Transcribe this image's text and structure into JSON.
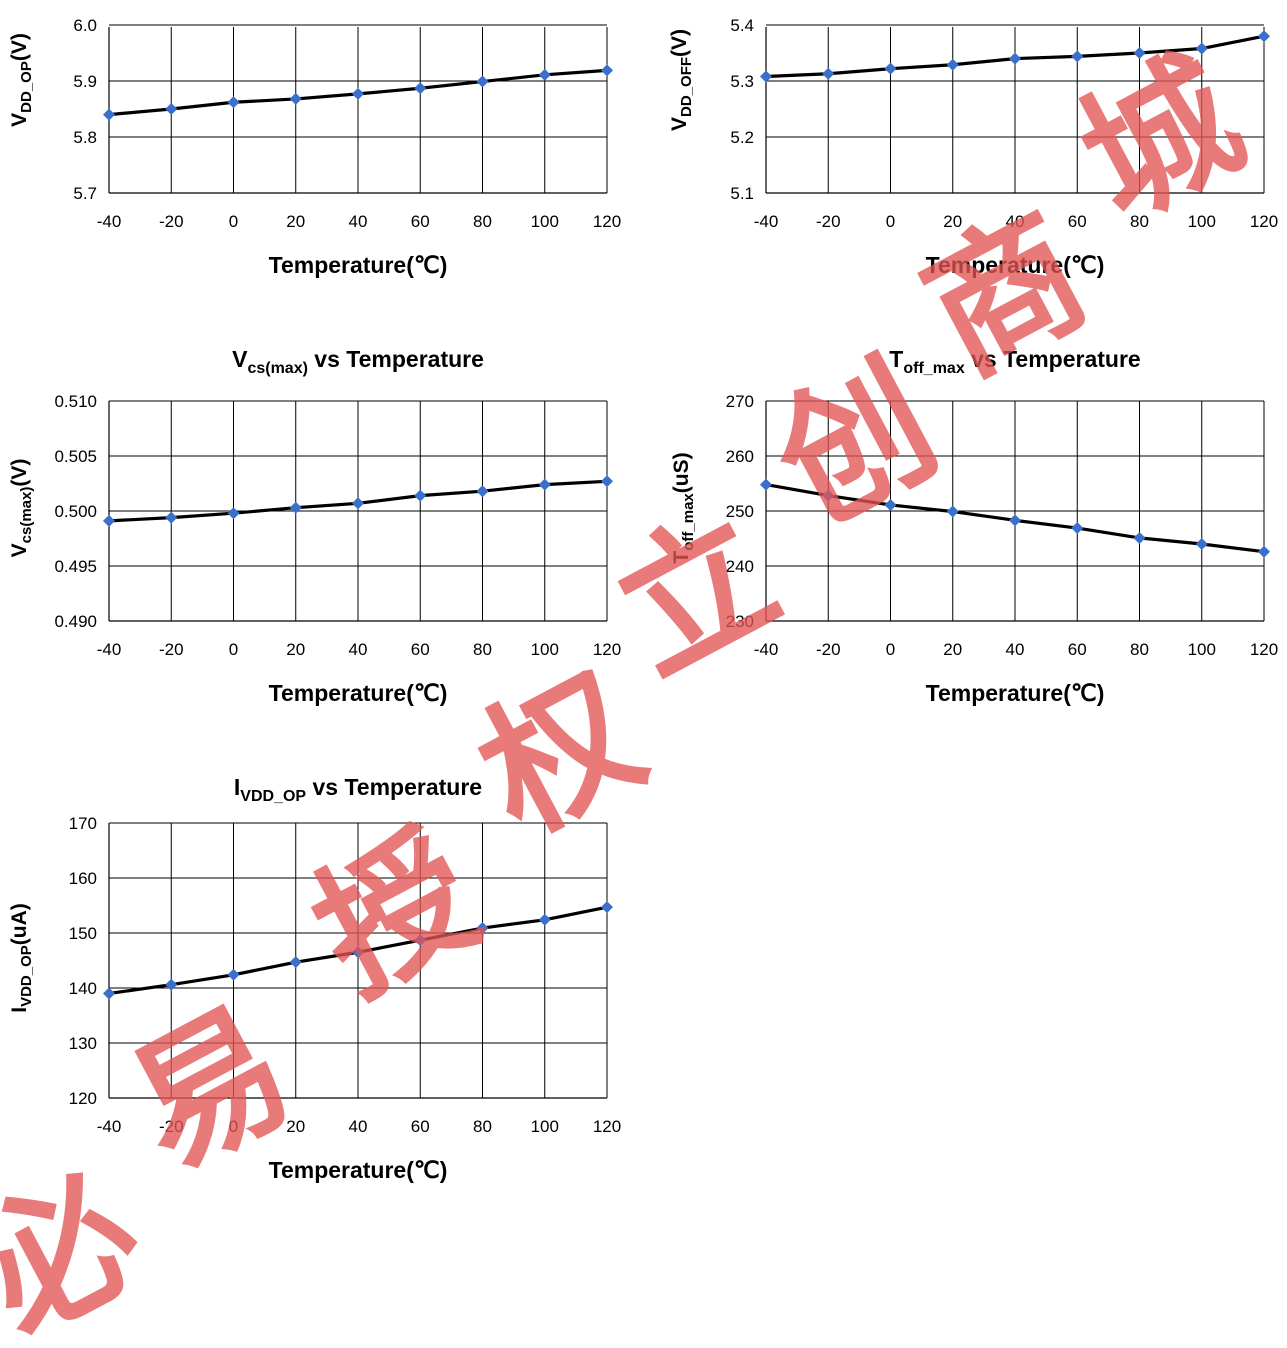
{
  "chart_data": [
    {
      "type": "line",
      "title": "",
      "ylabel": {
        "main": "V",
        "sub": "DD_OP",
        "tail": "(V)"
      },
      "xlabel": "Temperature(℃)",
      "x": [
        -40,
        -20,
        0,
        20,
        40,
        60,
        80,
        100,
        120
      ],
      "xticks": [
        "-40",
        "-20",
        "0",
        "20",
        "40",
        "60",
        "80",
        "100",
        "120"
      ],
      "series": [
        {
          "values": [
            5.84,
            5.85,
            5.862,
            5.868,
            5.877,
            5.887,
            5.899,
            5.911,
            5.919
          ]
        }
      ],
      "ylim": [
        5.7,
        6.0
      ],
      "yticks": [
        "5.7",
        "5.8",
        "5.9",
        "6.0"
      ],
      "yticks_values": [
        5.7,
        5.8,
        5.9,
        6.0
      ],
      "grid": true,
      "clipped_top": true
    },
    {
      "type": "line",
      "title": "",
      "ylabel": {
        "main": "V",
        "sub": "DD_OFF",
        "tail": "(V)"
      },
      "xlabel": "Temperature(℃)",
      "x": [
        -40,
        -20,
        0,
        20,
        40,
        60,
        80,
        100,
        120
      ],
      "xticks": [
        "-40",
        "-20",
        "0",
        "20",
        "40",
        "60",
        "80",
        "100",
        "120"
      ],
      "series": [
        {
          "values": [
            5.308,
            5.313,
            5.322,
            5.329,
            5.34,
            5.344,
            5.35,
            5.358,
            5.38
          ]
        }
      ],
      "ylim": [
        5.1,
        5.4
      ],
      "yticks": [
        "5.1",
        "5.2",
        "5.3",
        "5.4"
      ],
      "yticks_values": [
        5.1,
        5.2,
        5.3,
        5.4
      ],
      "grid": true,
      "clipped_top": true
    },
    {
      "type": "line",
      "title": {
        "main": "V",
        "sub": "cs(max)",
        "tail": " vs Temperature"
      },
      "ylabel": {
        "main": "V",
        "sub": "cs(max)",
        "tail": "(V)"
      },
      "xlabel": "Temperature(℃)",
      "x": [
        -40,
        -20,
        0,
        20,
        40,
        60,
        80,
        100,
        120
      ],
      "xticks": [
        "-40",
        "-20",
        "0",
        "20",
        "40",
        "60",
        "80",
        "100",
        "120"
      ],
      "series": [
        {
          "values": [
            0.4991,
            0.4994,
            0.4998,
            0.5003,
            0.5007,
            0.5014,
            0.5018,
            0.5024,
            0.5027
          ]
        }
      ],
      "ylim": [
        0.49,
        0.51
      ],
      "yticks": [
        "0.490",
        "0.495",
        "0.500",
        "0.505",
        "0.510"
      ],
      "yticks_values": [
        0.49,
        0.495,
        0.5,
        0.505,
        0.51
      ],
      "grid": true
    },
    {
      "type": "line",
      "title": {
        "main": "T",
        "sub": "off_max",
        "tail": " vs Temperature"
      },
      "ylabel": {
        "main": "T",
        "sub": "off_max",
        "tail": "(uS)"
      },
      "xlabel": "Temperature(℃)",
      "x": [
        -40,
        -20,
        0,
        20,
        40,
        60,
        80,
        100,
        120
      ],
      "xticks": [
        "-40",
        "-20",
        "0",
        "20",
        "40",
        "60",
        "80",
        "100",
        "120"
      ],
      "series": [
        {
          "values": [
            254.8,
            252.8,
            251.1,
            249.9,
            248.3,
            246.9,
            245.1,
            244.0,
            242.6
          ]
        }
      ],
      "ylim": [
        230,
        270
      ],
      "yticks": [
        "230",
        "240",
        "250",
        "260",
        "270"
      ],
      "yticks_values": [
        230,
        240,
        250,
        260,
        270
      ],
      "grid": true
    },
    {
      "type": "line",
      "title": {
        "main": "I",
        "sub": "VDD_OP",
        "tail": " vs Temperature"
      },
      "ylabel": {
        "main": "I",
        "sub": "VDD_OP",
        "tail": "(uA)"
      },
      "xlabel": "Temperature(℃)",
      "x": [
        -40,
        -20,
        0,
        20,
        40,
        60,
        80,
        100,
        120
      ],
      "xticks": [
        "-40",
        "-20",
        "0",
        "20",
        "40",
        "60",
        "80",
        "100",
        "120"
      ],
      "series": [
        {
          "values": [
            139.0,
            140.6,
            142.4,
            144.7,
            146.5,
            148.7,
            150.9,
            152.4,
            154.7
          ]
        }
      ],
      "ylim": [
        120,
        170
      ],
      "yticks": [
        "120",
        "130",
        "140",
        "150",
        "160",
        "170"
      ],
      "yticks_values": [
        120,
        130,
        140,
        150,
        160,
        170
      ],
      "grid": true
    }
  ],
  "watermark": {
    "chars": [
      "必",
      "易",
      "授",
      "权",
      "立",
      "创",
      "商",
      "城"
    ],
    "color": "#e25555"
  },
  "colors": {
    "line": "#000000",
    "marker": "#3a6fcb",
    "grid": "#000000"
  }
}
